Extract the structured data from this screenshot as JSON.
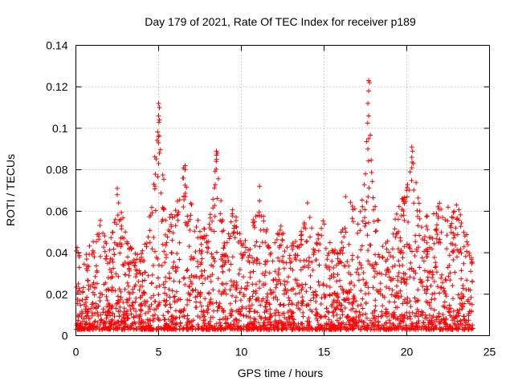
{
  "chart_data": {
    "type": "scatter",
    "title": "Day 179 of 2021, Rate Of TEC Index for receiver p189",
    "xlabel": "GPS time / hours",
    "ylabel": "ROTI / TECUs",
    "xlim": [
      0,
      25
    ],
    "ylim": [
      0,
      0.14
    ],
    "x_ticks": [
      "0",
      "5",
      "10",
      "15",
      "20",
      "25"
    ],
    "y_ticks": [
      "0",
      "0.02",
      "0.04",
      "0.06",
      "0.08",
      "0.1",
      "0.12",
      "0.14"
    ],
    "grid": true,
    "marker": "plus",
    "series_color": "#ff0000",
    "x_end_hours": 24,
    "envelope": [
      [
        0.0,
        0.046
      ],
      [
        0.5,
        0.04
      ],
      [
        1.0,
        0.045
      ],
      [
        1.5,
        0.058
      ],
      [
        2.0,
        0.04
      ],
      [
        2.5,
        0.071
      ],
      [
        3.0,
        0.052
      ],
      [
        3.5,
        0.04
      ],
      [
        4.0,
        0.041
      ],
      [
        4.5,
        0.06
      ],
      [
        5.0,
        0.112
      ],
      [
        5.5,
        0.058
      ],
      [
        6.0,
        0.06
      ],
      [
        6.5,
        0.082
      ],
      [
        7.0,
        0.068
      ],
      [
        7.5,
        0.055
      ],
      [
        8.0,
        0.05
      ],
      [
        8.5,
        0.089
      ],
      [
        9.0,
        0.045
      ],
      [
        9.5,
        0.063
      ],
      [
        10.0,
        0.05
      ],
      [
        10.5,
        0.044
      ],
      [
        11.0,
        0.072
      ],
      [
        11.5,
        0.053
      ],
      [
        12.0,
        0.047
      ],
      [
        12.5,
        0.055
      ],
      [
        13.0,
        0.045
      ],
      [
        13.5,
        0.047
      ],
      [
        14.0,
        0.064
      ],
      [
        14.5,
        0.047
      ],
      [
        15.0,
        0.059
      ],
      [
        15.5,
        0.045
      ],
      [
        16.0,
        0.05
      ],
      [
        16.5,
        0.068
      ],
      [
        17.0,
        0.06
      ],
      [
        17.5,
        0.078
      ],
      [
        17.7,
        0.123
      ],
      [
        18.0,
        0.065
      ],
      [
        18.5,
        0.05
      ],
      [
        19.0,
        0.053
      ],
      [
        19.5,
        0.062
      ],
      [
        20.0,
        0.072
      ],
      [
        20.3,
        0.091
      ],
      [
        20.7,
        0.066
      ],
      [
        21.0,
        0.056
      ],
      [
        21.5,
        0.06
      ],
      [
        22.0,
        0.066
      ],
      [
        22.5,
        0.058
      ],
      [
        23.0,
        0.063
      ],
      [
        23.5,
        0.057
      ],
      [
        24.0,
        0.045
      ]
    ],
    "highlight_points": [
      [
        5.0,
        0.112
      ],
      [
        5.05,
        0.11
      ],
      [
        5.0,
        0.106
      ],
      [
        5.05,
        0.104
      ],
      [
        5.0,
        0.096
      ],
      [
        5.0,
        0.093
      ],
      [
        5.05,
        0.088
      ],
      [
        5.0,
        0.083
      ],
      [
        6.6,
        0.082
      ],
      [
        6.6,
        0.08
      ],
      [
        6.5,
        0.076
      ],
      [
        8.5,
        0.089
      ],
      [
        8.55,
        0.088
      ],
      [
        8.5,
        0.087
      ],
      [
        8.5,
        0.085
      ],
      [
        17.7,
        0.123
      ],
      [
        17.75,
        0.122
      ],
      [
        17.7,
        0.118
      ],
      [
        17.65,
        0.112
      ],
      [
        17.7,
        0.106
      ],
      [
        17.7,
        0.095
      ],
      [
        17.65,
        0.09
      ],
      [
        17.5,
        0.078
      ],
      [
        20.3,
        0.091
      ],
      [
        20.35,
        0.089
      ],
      [
        20.3,
        0.086
      ],
      [
        20.4,
        0.083
      ],
      [
        20.3,
        0.081
      ],
      [
        20.2,
        0.079
      ],
      [
        11.1,
        0.072
      ],
      [
        11.1,
        0.065
      ],
      [
        2.5,
        0.071
      ],
      [
        2.5,
        0.068
      ],
      [
        16.3,
        0.067
      ],
      [
        14.0,
        0.064
      ],
      [
        22.5,
        0.062
      ],
      [
        23.0,
        0.063
      ]
    ]
  }
}
